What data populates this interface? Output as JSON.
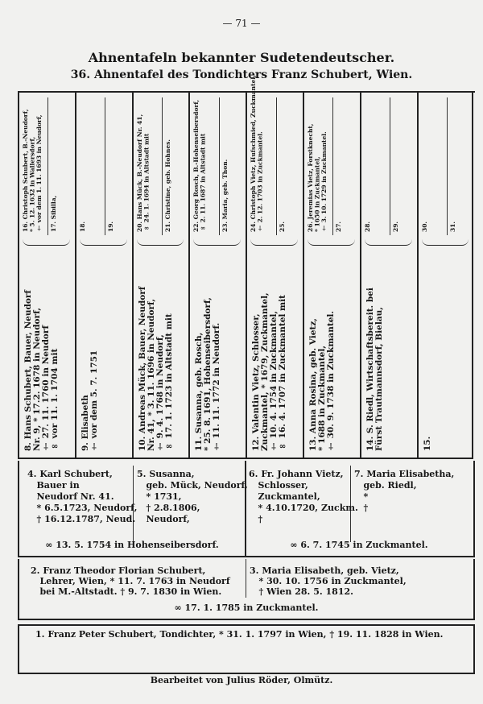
{
  "page_number": "— 71 —",
  "title": "Ahnentafeln bekannter Sudetendeutscher.",
  "subtitle": "36. Ahnentafel des Tondichters Franz Schubert, Wien.",
  "generation4": [
    {
      "text": "8. Hans Schubert, Bauer, Neudorf\nNr. 9, * 17.2. 1678 in Neudorf,\n† 27. 11. 1760 in Neudorf\n∞ vor 11. 1. 1704 mit"
    },
    {
      "text": "9. Elisabeth\n† vor dem 5. 7. 1751"
    },
    {
      "text": "10. Andreas Mück, Bauer, Neudorf\nNr. 41, * 3. 11. 1696 in Neudorf,\n† 9. 4. 1768 in Neudorf,\n∞ 17. 1. 1723 in Altstadt mit"
    },
    {
      "text": "11. Susanna, geb. Rosch,\n* 25. 8. 1691, Hohenseibersdorf,\n† 11. 11. 1772 in Neudorf."
    },
    {
      "text": "12. Valentin Vietz, Schlosser,\nZuckmantel, * 1679, Zuckmantel,\n† 10. 4. 1754 in Zuckmantel,\n∞ 16. 4. 1707 in Zuckmantel mit"
    },
    {
      "text": "13. Anna Rosina, geb. Vietz,\n* 1688 in Zuckmantel,\n† 30. 9. 1738 in Zuckmantel."
    },
    {
      "text": "14. S. Riedl, Wirtschaftsbereit. bei\nFürst Trautmannsdorf, Bielau,"
    },
    {
      "text": "15."
    }
  ],
  "generation5": [
    {
      "text": "16. Christoph Schubert, B.-Neudorf,\n* 5. 12. 1632 in Wallersdorf,\n† vor dem 1. 11. 1693 in Neudorf,"
    },
    {
      "text": "17. Sibilla,"
    },
    {
      "text": "18."
    },
    {
      "text": "19."
    },
    {
      "text": "20. Hans Mück, B.-Neudorf Nr. 41,\n∞ 24. 1. 1694 in Altstadt mit"
    },
    {
      "text": "21. Christine, geb. Hohnes."
    },
    {
      "text": "22. Georg Rosch, B.-Hohenseibersdorf,\n∞ 2. 11. 1687 in Altstadt mit"
    },
    {
      "text": "23. Maria, geb. Thon."
    },
    {
      "text": "24. Christoph Vietz, Hufschmied, Zuckmantel,\n† 2. 12. 1703 in Zuckmantel."
    },
    {
      "text": "25."
    },
    {
      "text": "26. Jeremias Vietz, Forstknecht,\n* 1650 in Zuckmantel,\n† 3. 10. 1729 in Zuckmantel."
    },
    {
      "text": "27."
    },
    {
      "text": "28."
    },
    {
      "text": "29."
    },
    {
      "text": "30."
    },
    {
      "text": "31."
    }
  ],
  "generation3": [
    {
      "text": "4. Karl Schubert,\n   Bauer in\n   Neudorf Nr. 41.\n   * 6.5.1723, Neudorf,\n   † 16.12.1787, Neud."
    },
    {
      "text": "5. Susanna,\n   geb. Mück, Neudorf,\n   * 1731,\n   † 2.8.1806,\n   Neudorf,"
    },
    {
      "text": "6. Fr. Johann Vietz,\n   Schlosser,\n   Zuckmantel,\n   * 4.10.1720, Zuckm.\n   †"
    },
    {
      "text": "7. Maria Elisabetha,\n   geb. Riedl,\n   *\n   †"
    }
  ],
  "marriages3": [
    "∞ 13. 5. 1754 in Hohenseibersdorf.",
    "∞ 6. 7. 1745 in Zuckmantel."
  ],
  "generation2": [
    {
      "text": "2. Franz Theodor Florian Schubert,\n   Lehrer, Wien, * 11. 7. 1763 in Neudorf\n   bei M.-Altstadt. † 9. 7. 1830 in Wien."
    },
    {
      "text": "3. Maria Elisabeth, geb. Vietz,\n   * 30. 10. 1756 in Zuckmantel,\n   † Wien 28. 5. 1812."
    }
  ],
  "marriage2": "∞ 17. 1. 1785 in Zuckmantel.",
  "proband": "1. Franz Peter Schubert, Tondichter, * 31. 1. 1797 in Wien, † 19. 11. 1828 in Wien.",
  "footer": "Bearbeitet von Julius Röder, Olmütz."
}
